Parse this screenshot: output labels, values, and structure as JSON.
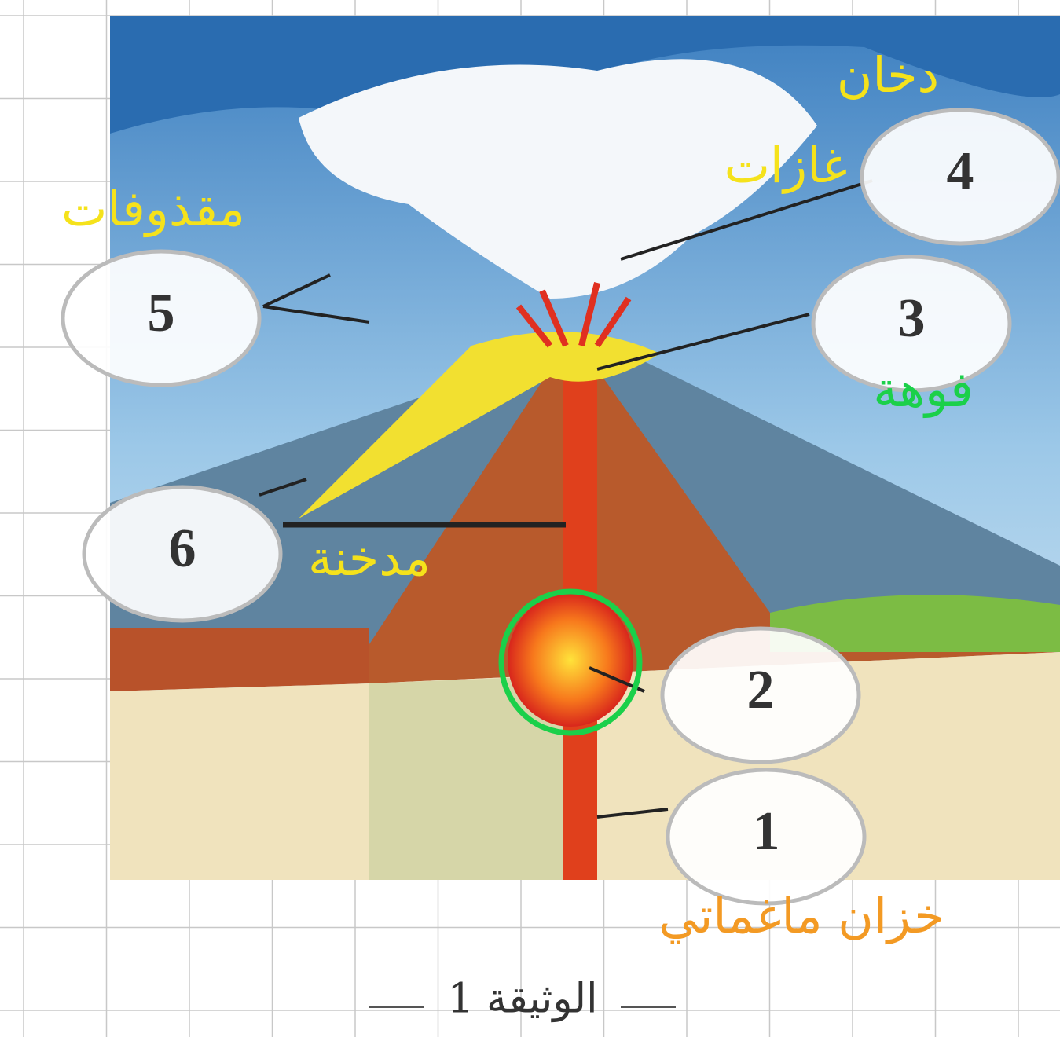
{
  "parts": [
    {
      "number": "1",
      "label": "خزان ماغماتي"
    },
    {
      "number": "2",
      "label": ""
    },
    {
      "number": "3",
      "label": "فوهة"
    },
    {
      "number": "4",
      "label": "غازات"
    },
    {
      "number": "5",
      "label": "مقذوفات"
    },
    {
      "number": "6",
      "label": "مدخنة"
    }
  ],
  "top_label": "دخان",
  "caption": "الوثيقة 1"
}
